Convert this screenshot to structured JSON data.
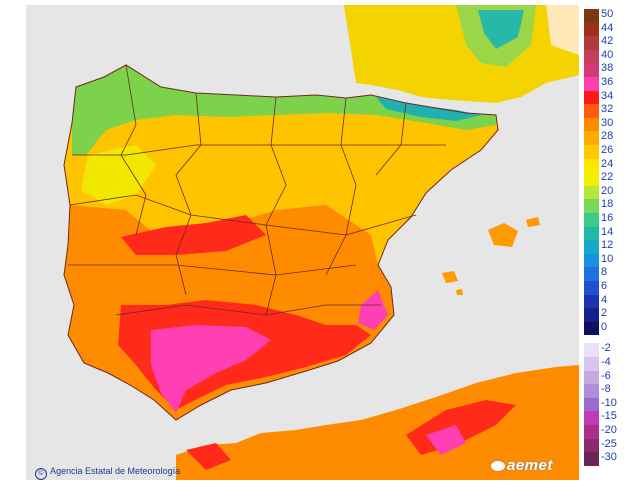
{
  "map": {
    "sea_color": "#e6e6e6",
    "border_color": "#6b2a20",
    "legend_positive": [
      {
        "label": "50",
        "color": "#7a3a10"
      },
      {
        "label": "44",
        "color": "#a0301a"
      },
      {
        "label": "42",
        "color": "#b23a3a"
      },
      {
        "label": "40",
        "color": "#c0405a"
      },
      {
        "label": "38",
        "color": "#d03a7a"
      },
      {
        "label": "36",
        "color": "#ff3fb0"
      },
      {
        "label": "34",
        "color": "#ff1a1a"
      },
      {
        "label": "32",
        "color": "#ff5a10"
      },
      {
        "label": "30",
        "color": "#ff8a00"
      },
      {
        "label": "28",
        "color": "#ffaa00"
      },
      {
        "label": "26",
        "color": "#ffc800"
      },
      {
        "label": "24",
        "color": "#ffe600"
      },
      {
        "label": "22",
        "color": "#f0f000"
      },
      {
        "label": "20",
        "color": "#b6e83c"
      },
      {
        "label": "18",
        "color": "#78d85a"
      },
      {
        "label": "16",
        "color": "#40c888"
      },
      {
        "label": "14",
        "color": "#20b8a8"
      },
      {
        "label": "12",
        "color": "#18a8c8"
      },
      {
        "label": "10",
        "color": "#1a90e0"
      },
      {
        "label": "8",
        "color": "#2070e0"
      },
      {
        "label": "6",
        "color": "#2050d0"
      },
      {
        "label": "4",
        "color": "#1a34b0"
      },
      {
        "label": "2",
        "color": "#16208c"
      },
      {
        "label": "0",
        "color": "#101060"
      }
    ],
    "legend_negative": [
      {
        "label": "-2",
        "color": "#ece0f4"
      },
      {
        "label": "-4",
        "color": "#d8c4ec"
      },
      {
        "label": "-6",
        "color": "#c4a8e4"
      },
      {
        "label": "-8",
        "color": "#b08cdc"
      },
      {
        "label": "-10",
        "color": "#9a6ad2"
      },
      {
        "label": "-15",
        "color": "#c03ab8"
      },
      {
        "label": "-20",
        "color": "#a8308c"
      },
      {
        "label": "-25",
        "color": "#8c2a70"
      },
      {
        "label": "-30",
        "color": "#6a2458"
      }
    ],
    "credit_text": "Agencia Estatal de Meteorología",
    "credit_symbol": "©",
    "brand_text": "aemet"
  }
}
